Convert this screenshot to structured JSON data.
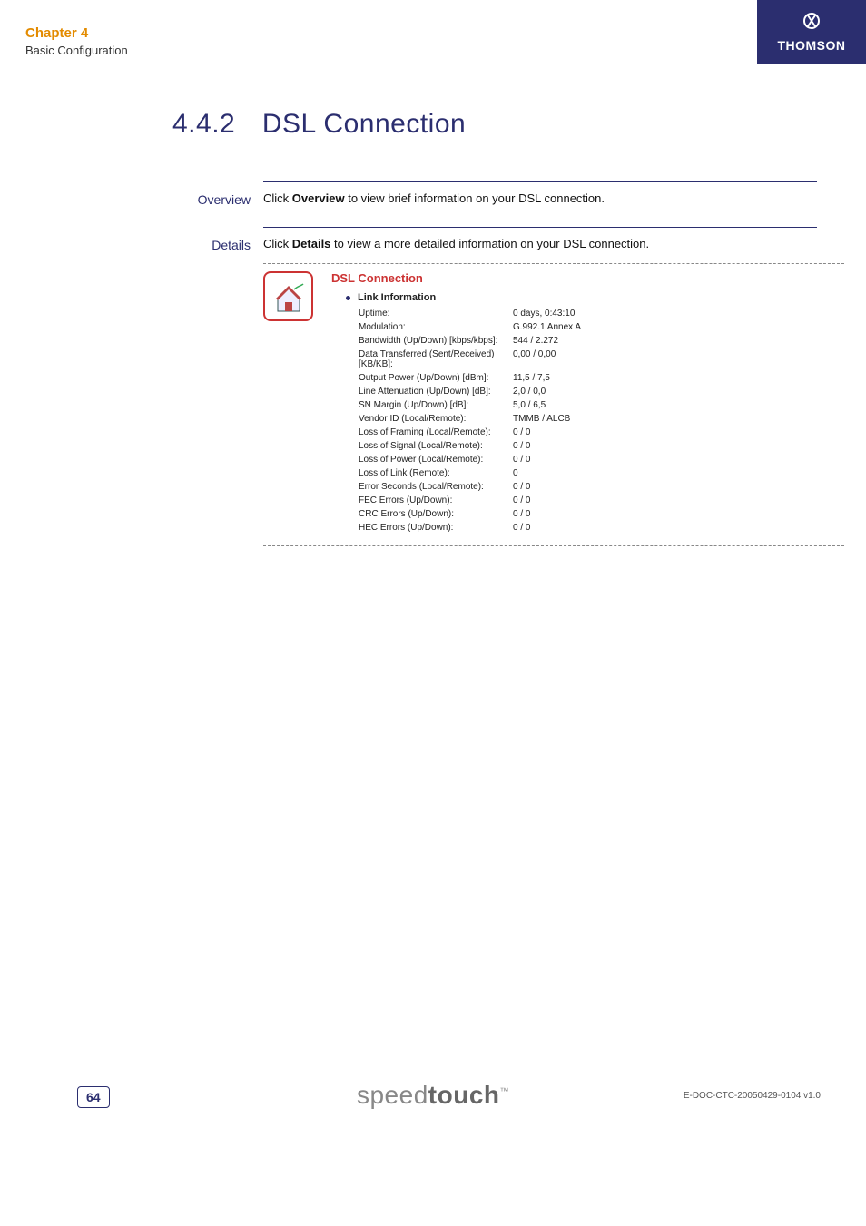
{
  "header": {
    "chapter": "Chapter 4",
    "subtitle": "Basic Configuration",
    "brand": "THOMSON"
  },
  "page": {
    "section_number": "4.4.2",
    "title": "DSL Connection"
  },
  "overview": {
    "label": "Overview",
    "text_pre": "Click ",
    "text_bold": "Overview",
    "text_post": " to view brief information on your DSL connection."
  },
  "details": {
    "label": "Details",
    "text_pre": "Click ",
    "text_bold": "Details",
    "text_post": " to view a more detailed information on your DSL connection."
  },
  "panel": {
    "title": "DSL Connection",
    "subheading": "Link Information",
    "rows": [
      {
        "label": "Uptime:",
        "value": "0 days, 0:43:10"
      },
      {
        "label": "Modulation:",
        "value": "G.992.1 Annex A"
      },
      {
        "label": "Bandwidth (Up/Down) [kbps/kbps]:",
        "value": "544 / 2.272"
      },
      {
        "label": "Data Transferred (Sent/Received) [KB/KB]:",
        "value": "0,00 / 0,00"
      },
      {
        "label": "Output Power (Up/Down) [dBm]:",
        "value": "11,5 / 7,5"
      },
      {
        "label": "Line Attenuation (Up/Down) [dB]:",
        "value": "2,0 / 0,0"
      },
      {
        "label": "SN Margin (Up/Down) [dB]:",
        "value": "5,0 / 6,5"
      },
      {
        "label": "Vendor ID (Local/Remote):",
        "value": "TMMB / ALCB"
      },
      {
        "label": "Loss of Framing (Local/Remote):",
        "value": "0 / 0"
      },
      {
        "label": "Loss of Signal (Local/Remote):",
        "value": "0 / 0"
      },
      {
        "label": "Loss of Power (Local/Remote):",
        "value": "0 / 0"
      },
      {
        "label": "Loss of Link (Remote):",
        "value": "0"
      },
      {
        "label": "Error Seconds (Local/Remote):",
        "value": "0 / 0"
      },
      {
        "label": "FEC Errors (Up/Down):",
        "value": "0 / 0"
      },
      {
        "label": "CRC Errors (Up/Down):",
        "value": "0 / 0"
      },
      {
        "label": "HEC Errors (Up/Down):",
        "value": "0 / 0"
      }
    ]
  },
  "footer": {
    "page_number": "64",
    "logo_light": "speed",
    "logo_bold": "touch",
    "docref": "E-DOC-CTC-20050429-0104 v1.0"
  },
  "colors": {
    "accent_orange": "#e38b00",
    "brand_navy": "#2b2e6f",
    "panel_red": "#c33",
    "text": "#111",
    "logo_grey": "#888"
  }
}
